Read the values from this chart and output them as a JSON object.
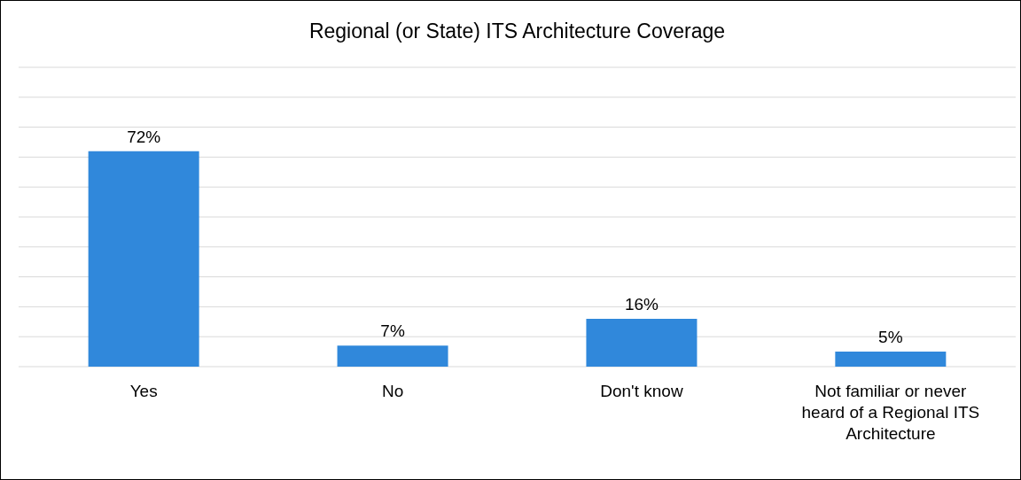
{
  "chart_data": {
    "type": "bar",
    "title": "Regional (or State) ITS Architecture Coverage",
    "categories": [
      "Yes",
      "No",
      "Don't know",
      "Not familiar or never heard of a Regional ITS Architecture"
    ],
    "values": [
      72,
      7,
      16,
      5
    ],
    "color": "#3088db",
    "value_labels": [
      "72%",
      "7%",
      "16%",
      "5%"
    ],
    "ylim": [
      0,
      100
    ],
    "yticks": [
      {
        "value": 0,
        "label": null
      },
      {
        "value": 10,
        "label": null
      },
      {
        "value": 20,
        "label": null
      },
      {
        "value": 30,
        "label": null
      },
      {
        "value": 40,
        "label": null
      },
      {
        "value": 50,
        "label": null
      },
      {
        "value": 60,
        "label": null
      },
      {
        "value": 70,
        "label": null
      },
      {
        "value": 80,
        "label": null
      },
      {
        "value": 90,
        "label": null
      },
      {
        "value": 100,
        "label": null
      }
    ],
    "tick_labels": "x",
    "grid": "y"
  }
}
